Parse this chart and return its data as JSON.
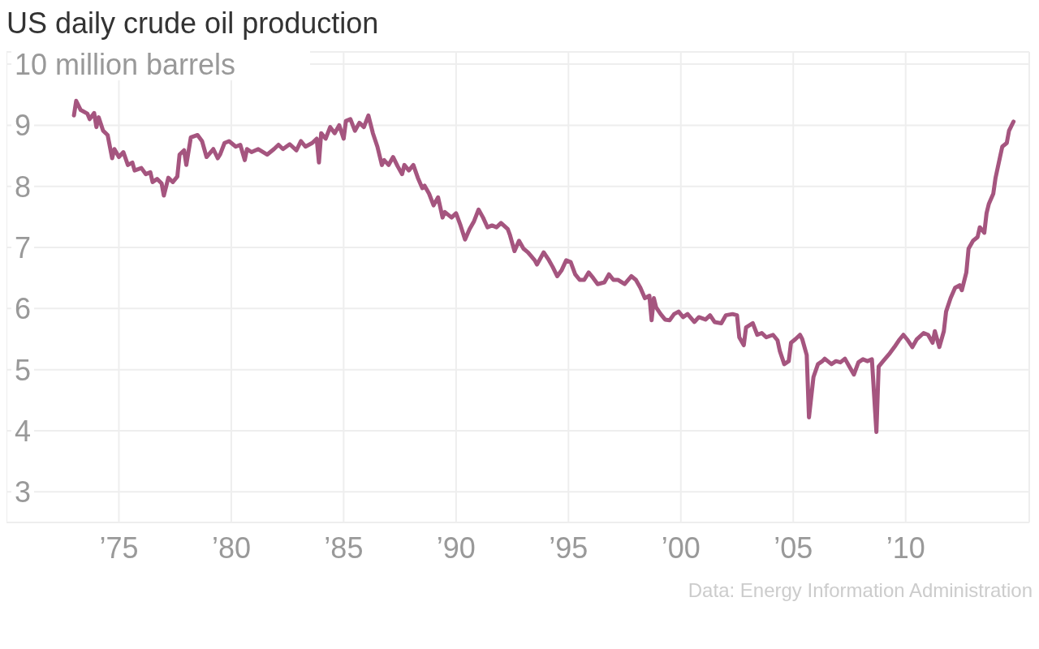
{
  "chart_data": {
    "type": "line",
    "title": "US daily crude oil production",
    "annotations": [
      "Data: Energy Information Administration"
    ],
    "x": [
      1973.0,
      1973.1,
      1973.3,
      1973.6,
      1973.7,
      1973.9,
      1974.0,
      1974.1,
      1974.3,
      1974.5,
      1974.7,
      1974.8,
      1975.0,
      1975.2,
      1975.4,
      1975.6,
      1975.7,
      1976.0,
      1976.2,
      1976.4,
      1976.5,
      1976.7,
      1976.9,
      1977.0,
      1977.2,
      1977.4,
      1977.6,
      1977.7,
      1977.9,
      1978.0,
      1978.2,
      1978.5,
      1978.7,
      1978.9,
      1979.2,
      1979.4,
      1979.5,
      1979.7,
      1979.9,
      1980.2,
      1980.4,
      1980.6,
      1980.7,
      1980.9,
      1981.2,
      1981.6,
      1981.9,
      1982.1,
      1982.3,
      1982.6,
      1982.9,
      1983.1,
      1983.3,
      1983.6,
      1983.8,
      1983.9,
      1984.0,
      1984.2,
      1984.4,
      1984.6,
      1984.8,
      1985.0,
      1985.1,
      1985.3,
      1985.5,
      1985.7,
      1985.9,
      1986.1,
      1986.3,
      1986.5,
      1986.7,
      1986.8,
      1987.0,
      1987.2,
      1987.4,
      1987.6,
      1987.7,
      1987.9,
      1988.1,
      1988.3,
      1988.5,
      1988.6,
      1988.8,
      1989.0,
      1989.2,
      1989.4,
      1989.5,
      1989.8,
      1990.0,
      1990.2,
      1990.4,
      1990.6,
      1990.8,
      1991.0,
      1991.2,
      1991.4,
      1991.6,
      1991.8,
      1992.0,
      1992.3,
      1992.4,
      1992.6,
      1992.8,
      1993.0,
      1993.2,
      1993.5,
      1993.6,
      1993.9,
      1994.1,
      1994.3,
      1994.5,
      1994.7,
      1994.9,
      1995.1,
      1995.3,
      1995.5,
      1995.7,
      1995.9,
      1996.1,
      1996.3,
      1996.6,
      1996.8,
      1997.0,
      1997.2,
      1997.5,
      1997.8,
      1998.0,
      1998.2,
      1998.4,
      1998.6,
      1998.7,
      1998.8,
      1998.9,
      1999.1,
      1999.3,
      1999.5,
      1999.7,
      1999.9,
      2000.1,
      2000.3,
      2000.6,
      2000.8,
      2001.1,
      2001.3,
      2001.5,
      2001.8,
      2002.0,
      2002.3,
      2002.5,
      2002.6,
      2002.8,
      2002.9,
      2003.2,
      2003.4,
      2003.6,
      2003.8,
      2004.1,
      2004.3,
      2004.4,
      2004.6,
      2004.8,
      2004.9,
      2005.1,
      2005.3,
      2005.4,
      2005.6,
      2005.7,
      2005.9,
      2006.1,
      2006.3,
      2006.4,
      2006.7,
      2006.9,
      2007.1,
      2007.3,
      2007.5,
      2007.7,
      2007.9,
      2008.1,
      2008.3,
      2008.5,
      2008.7,
      2008.8,
      2009.0,
      2009.3,
      2009.5,
      2009.7,
      2009.9,
      2010.1,
      2010.3,
      2010.5,
      2010.8,
      2011.0,
      2011.2,
      2011.3,
      2011.5,
      2011.7,
      2011.8,
      2012.0,
      2012.2,
      2012.4,
      2012.5,
      2012.7,
      2012.8,
      2013.0,
      2013.2,
      2013.3,
      2013.5,
      2013.6,
      2013.7,
      2013.9,
      2014.0,
      2014.2,
      2014.3,
      2014.5,
      2014.6,
      2014.8
    ],
    "series": [
      {
        "color": "#a5557f",
        "values": [
          9.16,
          9.4,
          9.25,
          9.19,
          9.1,
          9.2,
          8.97,
          9.13,
          8.91,
          8.84,
          8.46,
          8.61,
          8.48,
          8.56,
          8.35,
          8.39,
          8.26,
          8.3,
          8.2,
          8.23,
          8.07,
          8.12,
          8.05,
          7.85,
          8.14,
          8.07,
          8.16,
          8.52,
          8.59,
          8.35,
          8.8,
          8.84,
          8.74,
          8.48,
          8.61,
          8.46,
          8.52,
          8.71,
          8.74,
          8.65,
          8.68,
          8.43,
          8.61,
          8.56,
          8.61,
          8.52,
          8.61,
          8.68,
          8.61,
          8.69,
          8.59,
          8.74,
          8.65,
          8.71,
          8.78,
          8.39,
          8.87,
          8.78,
          8.97,
          8.87,
          9.0,
          8.78,
          9.07,
          9.1,
          8.91,
          9.04,
          8.97,
          9.16,
          8.87,
          8.65,
          8.35,
          8.43,
          8.35,
          8.48,
          8.33,
          8.2,
          8.35,
          8.26,
          8.35,
          8.14,
          7.97,
          8.01,
          7.88,
          7.69,
          7.82,
          7.49,
          7.58,
          7.49,
          7.56,
          7.36,
          7.13,
          7.3,
          7.43,
          7.62,
          7.49,
          7.33,
          7.36,
          7.33,
          7.4,
          7.3,
          7.2,
          6.94,
          7.11,
          6.98,
          6.92,
          6.79,
          6.72,
          6.92,
          6.81,
          6.68,
          6.53,
          6.63,
          6.79,
          6.76,
          6.56,
          6.47,
          6.47,
          6.59,
          6.5,
          6.4,
          6.43,
          6.56,
          6.47,
          6.47,
          6.4,
          6.53,
          6.47,
          6.34,
          6.17,
          6.21,
          5.81,
          6.17,
          6.02,
          5.91,
          5.82,
          5.81,
          5.91,
          5.95,
          5.86,
          5.91,
          5.78,
          5.86,
          5.82,
          5.89,
          5.78,
          5.76,
          5.89,
          5.91,
          5.89,
          5.53,
          5.4,
          5.69,
          5.76,
          5.57,
          5.6,
          5.53,
          5.57,
          5.48,
          5.31,
          5.09,
          5.14,
          5.44,
          5.5,
          5.57,
          5.5,
          5.24,
          4.22,
          4.88,
          5.09,
          5.14,
          5.18,
          5.09,
          5.14,
          5.12,
          5.18,
          5.05,
          4.92,
          5.12,
          5.17,
          5.14,
          5.17,
          3.98,
          5.05,
          5.14,
          5.27,
          5.37,
          5.48,
          5.57,
          5.48,
          5.37,
          5.5,
          5.6,
          5.57,
          5.44,
          5.63,
          5.37,
          5.63,
          5.95,
          6.17,
          6.34,
          6.38,
          6.3,
          6.59,
          6.98,
          7.11,
          7.17,
          7.33,
          7.24,
          7.56,
          7.71,
          7.88,
          8.14,
          8.48,
          8.65,
          8.71,
          8.91,
          9.06
        ]
      }
    ],
    "xlim": [
      1970,
      2015.5
    ],
    "xticks": [
      {
        "value": 1975,
        "label": "’75"
      },
      {
        "value": 1980,
        "label": "’80"
      },
      {
        "value": 1985,
        "label": "’85"
      },
      {
        "value": 1990,
        "label": "’90"
      },
      {
        "value": 1995,
        "label": "’95"
      },
      {
        "value": 2000,
        "label": "’00"
      },
      {
        "value": 2005,
        "label": "’05"
      },
      {
        "value": 2010,
        "label": "’10"
      }
    ],
    "ylim": [
      2.5,
      10.2
    ],
    "yticks": [
      3,
      4,
      5,
      6,
      7,
      8,
      9,
      {
        "value": 10,
        "label": "10 million barrels"
      }
    ],
    "grid": true
  }
}
